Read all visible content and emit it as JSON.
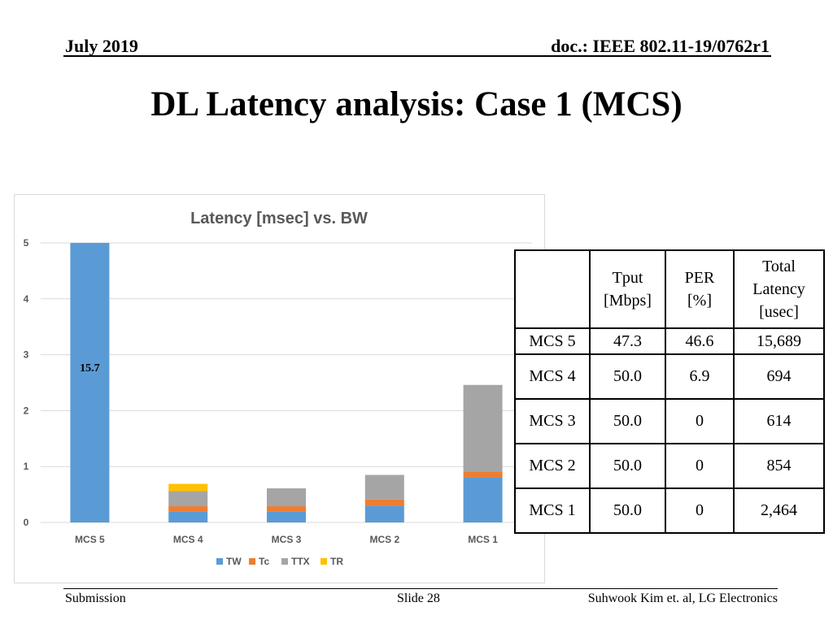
{
  "header": {
    "date": "July 2019",
    "doc": "doc.: IEEE 802.11-19/0762r1"
  },
  "title": "DL Latency analysis: Case 1 (MCS)",
  "chart_data": {
    "type": "bar",
    "stacked": true,
    "title": "Latency [msec] vs. BW",
    "categories": [
      "MCS 5",
      "MCS 4",
      "MCS 3",
      "MCS 2",
      "MCS 1"
    ],
    "ylim": [
      0,
      5
    ],
    "yticks": [
      "0",
      "1",
      "2",
      "3",
      "4",
      "5"
    ],
    "grid": true,
    "legend": "bottom",
    "series": [
      {
        "name": "TW",
        "color": "#5b9bd5",
        "values": [
          5.0,
          0.19,
          0.19,
          0.3,
          0.8
        ]
      },
      {
        "name": "Tc",
        "color": "#ed7d31",
        "values": [
          0,
          0.1,
          0.1,
          0.11,
          0.11
        ]
      },
      {
        "name": "TTX",
        "color": "#a5a5a5",
        "values": [
          0,
          0.27,
          0.32,
          0.44,
          1.55
        ]
      },
      {
        "name": "TR",
        "color": "#ffc000",
        "values": [
          0,
          0.13,
          0,
          0,
          0
        ]
      }
    ],
    "annotations": [
      {
        "category": "MCS 5",
        "text": "15.7"
      }
    ]
  },
  "table": {
    "headers": [
      [
        "",
        ""
      ],
      [
        "Tput",
        "[Mbps]"
      ],
      [
        "PER",
        "[%]"
      ],
      [
        "Total",
        "Latency",
        "[usec]"
      ]
    ],
    "rows": [
      [
        "MCS 5",
        "47.3",
        "46.6",
        "15,689"
      ],
      [
        "MCS 4",
        "50.0",
        "6.9",
        "694"
      ],
      [
        "MCS 3",
        "50.0",
        "0",
        "614"
      ],
      [
        "MCS 2",
        "50.0",
        "0",
        "854"
      ],
      [
        "MCS 1",
        "50.0",
        "0",
        "2,464"
      ]
    ]
  },
  "footer": {
    "left": "Submission",
    "center": "Slide 28",
    "right": "Suhwook Kim et. al, LG Electronics"
  }
}
